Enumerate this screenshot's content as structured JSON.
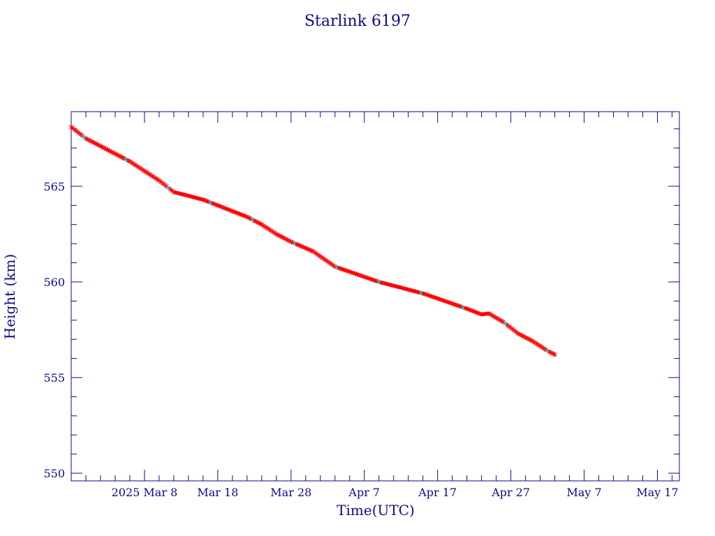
{
  "chart_data": {
    "type": "scatter",
    "title": "Starlink 6197",
    "xlabel": "Time(UTC)",
    "ylabel": "Height (km)",
    "x_type": "date",
    "xlim": [
      "2025-02-26",
      "2025-05-20"
    ],
    "ylim": [
      549.6,
      568.9
    ],
    "x_ticks": [
      {
        "date": "2025-03-08",
        "label": "2025 Mar  8"
      },
      {
        "date": "2025-03-18",
        "label": "Mar 18"
      },
      {
        "date": "2025-03-28",
        "label": "Mar 28"
      },
      {
        "date": "2025-04-07",
        "label": "Apr  7"
      },
      {
        "date": "2025-04-17",
        "label": "Apr 17"
      },
      {
        "date": "2025-04-27",
        "label": "Apr 27"
      },
      {
        "date": "2025-05-07",
        "label": "May  7"
      },
      {
        "date": "2025-05-17",
        "label": "May 17"
      }
    ],
    "y_ticks": [
      550,
      555,
      560,
      565
    ],
    "grid": false,
    "colors": {
      "frame": "#0a0a8c",
      "text": "#0a0a8c",
      "line": "#000000",
      "marker_primary": "#ff0000",
      "marker_secondary": "#00e0e0"
    },
    "series": [
      {
        "values_x": [
          "2025-02-26",
          "2025-02-28",
          "2025-03-02",
          "2025-03-04",
          "2025-03-06",
          "2025-03-08",
          "2025-03-10",
          "2025-03-12",
          "2025-03-14",
          "2025-03-15",
          "2025-03-16",
          "2025-03-18",
          "2025-03-20",
          "2025-03-22",
          "2025-03-24",
          "2025-03-26",
          "2025-03-28",
          "2025-03-31",
          "2025-04-03",
          "2025-04-06",
          "2025-04-09",
          "2025-04-12",
          "2025-04-15",
          "2025-04-18",
          "2025-04-21",
          "2025-04-23",
          "2025-04-24",
          "2025-04-26",
          "2025-04-28",
          "2025-04-30",
          "2025-05-02",
          "2025-05-03"
        ],
        "values_y": [
          568.1,
          567.5,
          567.1,
          566.7,
          566.3,
          565.8,
          565.3,
          564.7,
          564.5,
          564.4,
          564.3,
          564.0,
          563.7,
          563.4,
          563.0,
          562.5,
          562.1,
          561.6,
          560.8,
          560.4,
          560.0,
          559.7,
          559.4,
          559.0,
          558.6,
          558.3,
          558.35,
          557.9,
          557.3,
          556.9,
          556.4,
          556.2
        ]
      }
    ]
  }
}
